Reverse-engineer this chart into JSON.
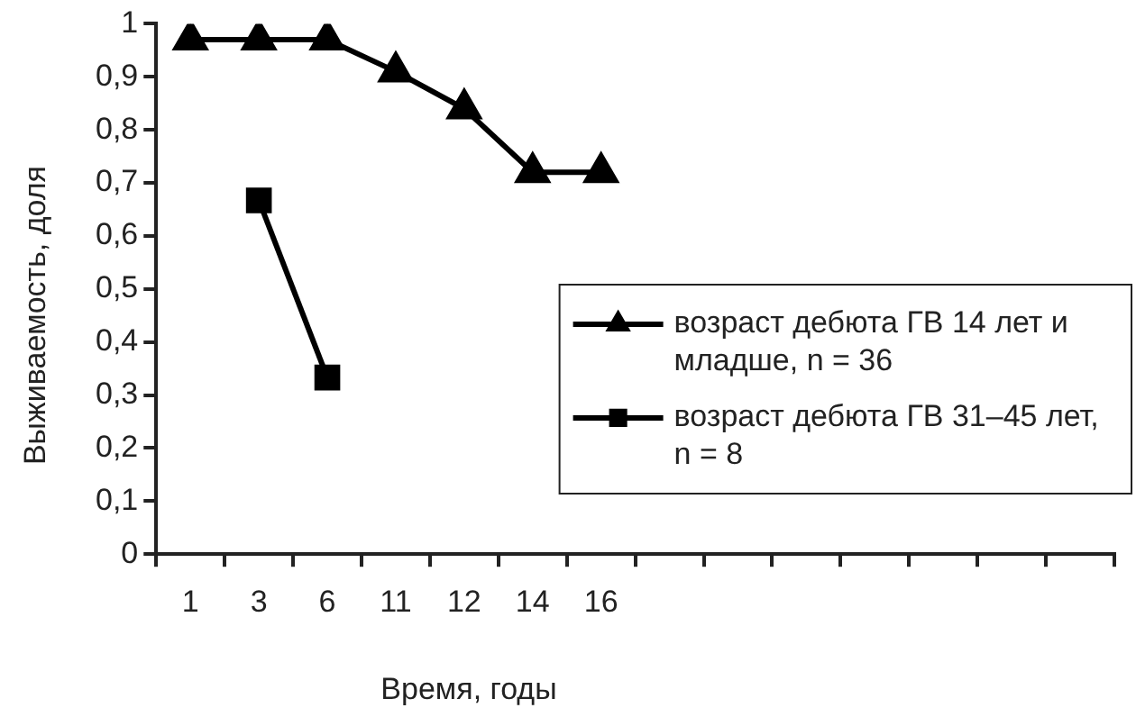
{
  "chart_data": {
    "type": "line",
    "xlabel": "Время, годы",
    "ylabel": "Выживаемость, доля",
    "categories": [
      "1",
      "3",
      "6",
      "11",
      "12",
      "14",
      "16",
      null,
      null,
      null,
      null,
      null,
      null,
      null
    ],
    "series": [
      {
        "name": "возраст дебюта ГВ 14 лет и младше, n = 36",
        "color": "#000000",
        "marker": "triangle",
        "values": [
          0.97,
          0.97,
          0.97,
          0.91,
          0.84,
          0.72,
          0.72,
          null,
          null,
          null,
          null,
          null,
          null,
          null
        ]
      },
      {
        "name": "возраст дебюта ГВ 31–45 лет, n = 8",
        "color": "#000000",
        "marker": "square",
        "values": [
          null,
          0.667,
          0.333,
          null,
          null,
          null,
          null,
          null,
          null,
          null,
          null,
          null,
          null,
          null
        ]
      }
    ],
    "ylim": [
      0,
      1
    ],
    "yticks": [
      0,
      {
        "value": 0.1,
        "label": "0,1"
      },
      {
        "value": 0.2,
        "label": "0,2"
      },
      {
        "value": 0.3,
        "label": "0,3"
      },
      {
        "value": 0.4,
        "label": "0,4"
      },
      {
        "value": 0.5,
        "label": "0,5"
      },
      {
        "value": 0.6,
        "label": "0,6"
      },
      {
        "value": 0.7,
        "label": "0,7"
      },
      {
        "value": 0.8,
        "label": "0,8"
      },
      {
        "value": 0.9,
        "label": "0,9"
      },
      1
    ],
    "grid": false,
    "legend": "right",
    "line_style": "solid"
  }
}
